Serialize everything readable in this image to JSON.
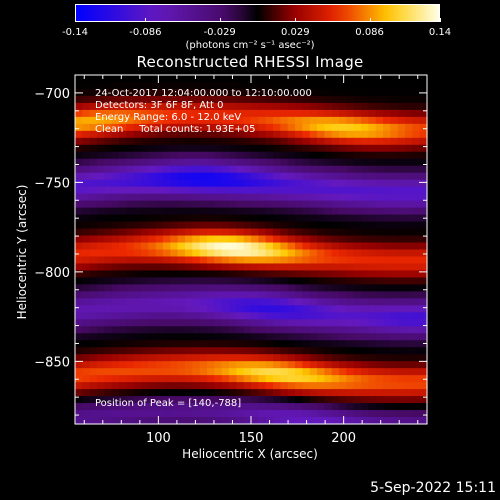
{
  "colorbar": {
    "ticks": [
      "-0.14",
      "-0.086",
      "-0.029",
      "0.029",
      "0.086",
      "0.14"
    ],
    "unit_label": "(photons cm⁻² s⁻¹ asec⁻²)"
  },
  "title": "Reconstructed RHESSI Image",
  "annotations": {
    "time": "24-Oct-2017 12:04:00.000 to 12:10:00.000",
    "detectors": "Detectors: 3F 6F 8F, Att 0",
    "energy": "Energy Range: 6.0 - 12.0 keV",
    "clean": "Clean     Total counts: 1.93E+05",
    "peak": "Position of Peak = [140,-788]"
  },
  "datestamp": "5-Sep-2022 15:11",
  "chart_data": {
    "type": "heatmap",
    "title": "Reconstructed RHESSI Image",
    "xlabel": "Heliocentric X (arcsec)",
    "ylabel": "Heliocentric Y (arcsec)",
    "xlim": [
      55,
      245
    ],
    "ylim": [
      -885,
      -690
    ],
    "xticks": [
      100,
      150,
      200
    ],
    "yticks": [
      -700,
      -750,
      -800,
      -850
    ],
    "colorbar_range": [
      -0.14,
      0.14
    ],
    "colormap": "blue-purple-black-red-yellow-white",
    "peak": [
      140,
      -788
    ],
    "bands": [
      {
        "y": -717,
        "amp": 0.06,
        "width": 9,
        "peaks": [
          {
            "x": 60,
            "a": 0.035
          },
          {
            "x": 200,
            "a": 0.045
          }
        ]
      },
      {
        "y": -752,
        "amp": -0.09,
        "width": 10,
        "peaks": [
          {
            "x": 125,
            "a": -0.04
          }
        ]
      },
      {
        "y": -790,
        "amp": 0.06,
        "width": 9,
        "peaks": [
          {
            "x": 140,
            "a": 0.08
          }
        ]
      },
      {
        "y": -822,
        "amp": -0.07,
        "width": 10,
        "peaks": [
          {
            "x": 160,
            "a": -0.04
          },
          {
            "x": 240,
            "a": -0.03
          }
        ]
      },
      {
        "y": -858,
        "amp": 0.07,
        "width": 9,
        "peaks": [
          {
            "x": 165,
            "a": 0.045
          }
        ]
      },
      {
        "y": -882,
        "amp": -0.05,
        "width": 8,
        "peaks": [
          {
            "x": 180,
            "a": -0.03
          }
        ]
      }
    ]
  }
}
